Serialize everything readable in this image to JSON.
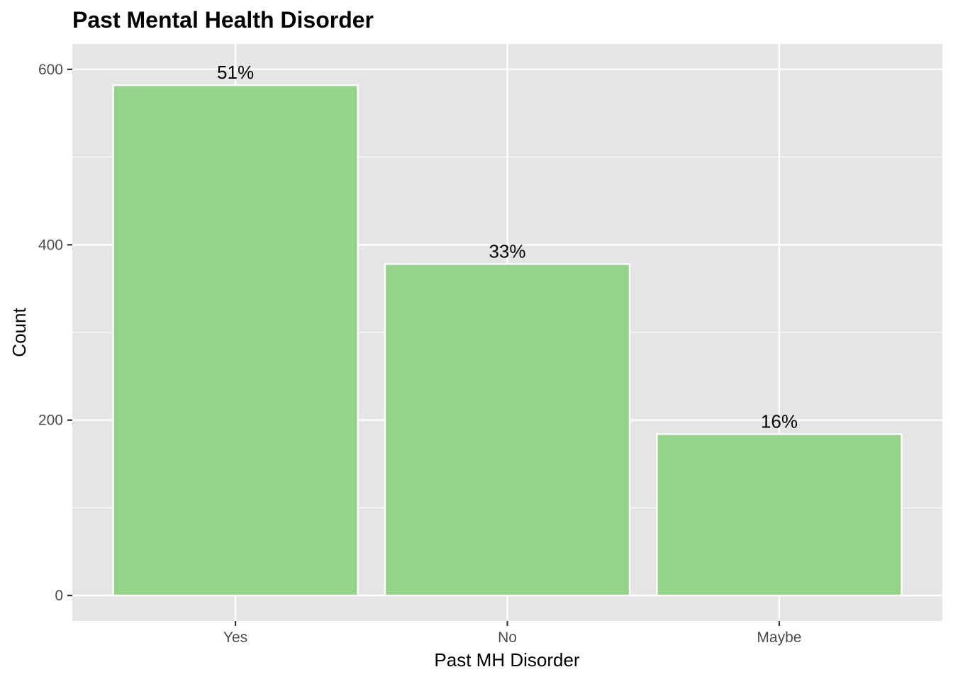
{
  "colors": {
    "panel_background": "#e5e5e5",
    "grid": "#ffffff",
    "bar_fill": "#96d38a",
    "bar_outline": "#ffffff",
    "tick_mark": "#333333"
  },
  "chart_data": {
    "type": "bar",
    "title": "Past Mental Health Disorder",
    "xlabel": "Past MH Disorder",
    "ylabel": "Count",
    "categories": [
      "Yes",
      "No",
      "Maybe"
    ],
    "values": [
      582,
      378,
      184
    ],
    "data_labels": [
      "51%",
      "33%",
      "16%"
    ],
    "ylim": [
      -29,
      629
    ],
    "y_ticks": [
      0,
      200,
      400,
      600
    ],
    "y_tick_labels": [
      "0",
      "200",
      "400",
      "600"
    ],
    "y_minor_grid": [
      100,
      300,
      500
    ],
    "grid": true,
    "legend": "none"
  }
}
